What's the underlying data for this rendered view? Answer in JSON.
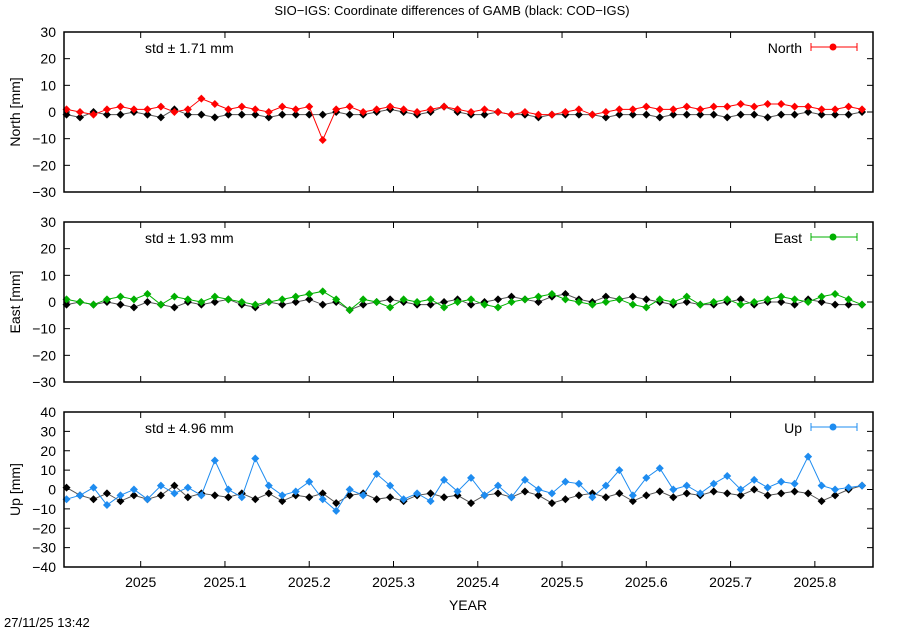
{
  "title": "SIO−IGS: Coordinate differences of GAMB (black: COD−IGS)",
  "timestamp": "27/11/25 13:42",
  "chart_data": [
    {
      "type": "line",
      "ylabel": "North [mm]",
      "ylim": [
        -30,
        30
      ],
      "yticks": [
        "30",
        "20",
        "10",
        "0",
        "−10",
        "−20",
        "−30"
      ],
      "std_label": "std ± 1.71 mm",
      "legend": "North",
      "legend_placement": "top-right",
      "color": "#ff0000",
      "series": [
        {
          "name": "North",
          "color": "#ff0000",
          "values": [
            1,
            0,
            -1,
            1,
            2,
            1,
            1,
            2,
            0,
            1,
            5,
            3,
            1,
            2,
            1,
            0,
            2,
            1,
            2,
            -10.5,
            1,
            2,
            0,
            1,
            2,
            1,
            0,
            1,
            2,
            1,
            0,
            1,
            0,
            -1,
            0,
            -1,
            -1,
            0,
            1,
            -1,
            0,
            1,
            1,
            2,
            1,
            1,
            2,
            1,
            2,
            2,
            3,
            2,
            3,
            3,
            2,
            2,
            1,
            1,
            2,
            1
          ]
        },
        {
          "color": "#000000",
          "values": [
            -1,
            -2,
            0,
            -1,
            -1,
            0,
            -1,
            -2,
            1,
            -1,
            -1,
            -2,
            -1,
            -1,
            -1,
            -2,
            -1,
            -1,
            -1,
            -1,
            0,
            -1,
            -1,
            0,
            1,
            0,
            -1,
            0,
            2,
            0,
            -1,
            -1,
            0,
            -1,
            -1,
            -2,
            -1,
            -1,
            -1,
            -1,
            -2,
            -1,
            -1,
            -1,
            -2,
            -1,
            -1,
            -1,
            -1,
            -2,
            -1,
            -1,
            -2,
            -1,
            -1,
            0,
            -1,
            -1,
            -1,
            0
          ]
        }
      ]
    },
    {
      "type": "line",
      "ylabel": "East [mm]",
      "ylim": [
        -30,
        30
      ],
      "yticks": [
        "30",
        "20",
        "10",
        "0",
        "−10",
        "−20",
        "−30"
      ],
      "std_label": "std ± 1.93 mm",
      "legend": "East",
      "legend_placement": "top-right",
      "color": "#00b000",
      "series": [
        {
          "name": "East",
          "color": "#00b000",
          "values": [
            1,
            0,
            -1,
            1,
            2,
            1,
            3,
            -1,
            2,
            1,
            0,
            2,
            1,
            0,
            -1,
            0,
            1,
            2,
            3,
            4,
            1,
            -3,
            1,
            0,
            -2,
            1,
            0,
            1,
            -2,
            0,
            1,
            -1,
            -2,
            0,
            1,
            2,
            3,
            1,
            0,
            -1,
            0,
            1,
            -1,
            -2,
            1,
            0,
            2,
            -1,
            0,
            1,
            -1,
            0,
            1,
            2,
            1,
            0,
            2,
            3,
            1,
            -1
          ]
        },
        {
          "color": "#000000",
          "values": [
            -1,
            0,
            -1,
            0,
            -1,
            -2,
            0,
            -1,
            -2,
            0,
            -1,
            0,
            1,
            -1,
            -2,
            0,
            -1,
            0,
            1,
            -1,
            0,
            -3,
            -1,
            0,
            1,
            0,
            -1,
            -1,
            0,
            1,
            -1,
            0,
            1,
            2,
            1,
            0,
            2,
            3,
            1,
            0,
            2,
            1,
            2,
            1,
            0,
            -1,
            0,
            -1,
            -1,
            0,
            1,
            -1,
            0,
            0,
            -1,
            1,
            0,
            -1,
            -1,
            -1
          ]
        }
      ]
    },
    {
      "type": "line",
      "ylabel": "Up [mm]",
      "ylim": [
        -40,
        40
      ],
      "yticks": [
        "40",
        "30",
        "20",
        "10",
        "0",
        "−10",
        "−20",
        "−30",
        "−40"
      ],
      "std_label": "std ± 4.96 mm",
      "legend": "Up",
      "legend_placement": "top-right",
      "color": "#1e8cf0",
      "series": [
        {
          "name": "Up",
          "color": "#1e8cf0",
          "values": [
            -5,
            -3,
            1,
            -8,
            -3,
            0,
            -5,
            2,
            -2,
            1,
            -3,
            15,
            0,
            -4,
            16,
            2,
            -3,
            -1,
            4,
            -5,
            -11,
            0,
            -3,
            8,
            2,
            -5,
            -2,
            -6,
            5,
            -1,
            6,
            -3,
            2,
            -4,
            5,
            0,
            -2,
            4,
            3,
            -4,
            2,
            10,
            -3,
            6,
            11,
            0,
            2,
            -2,
            3,
            7,
            0,
            5,
            1,
            4,
            3,
            17,
            2,
            0,
            1,
            2
          ]
        },
        {
          "color": "#000000",
          "values": [
            1,
            -3,
            -5,
            -2,
            -6,
            -3,
            -5,
            -3,
            2,
            -4,
            -2,
            -3,
            -4,
            -2,
            -5,
            -2,
            -6,
            -3,
            -4,
            -2,
            -7,
            -3,
            -2,
            -5,
            -4,
            -6,
            -3,
            -2,
            -4,
            -3,
            -7,
            -3,
            -2,
            -4,
            -1,
            -3,
            -7,
            -5,
            -3,
            -2,
            -4,
            -2,
            -6,
            -3,
            -1,
            -4,
            -2,
            -3,
            -1,
            -2,
            -3,
            0,
            -3,
            -2,
            -1,
            -2,
            -6,
            -3,
            0,
            2
          ]
        }
      ]
    }
  ],
  "x": [
    2024.912,
    2024.928,
    2024.944,
    2024.96,
    2024.976,
    2024.992,
    2025.008,
    2025.024,
    2025.04,
    2025.056,
    2025.072,
    2025.088,
    2025.104,
    2025.12,
    2025.136,
    2025.152,
    2025.168,
    2025.184,
    2025.2,
    2025.216,
    2025.232,
    2025.248,
    2025.264,
    2025.28,
    2025.296,
    2025.312,
    2025.328,
    2025.344,
    2025.36,
    2025.376,
    2025.392,
    2025.408,
    2025.424,
    2025.44,
    2025.456,
    2025.472,
    2025.488,
    2025.504,
    2025.52,
    2025.536,
    2025.552,
    2025.568,
    2025.584,
    2025.6,
    2025.616,
    2025.632,
    2025.648,
    2025.664,
    2025.68,
    2025.696,
    2025.712,
    2025.728,
    2025.744,
    2025.76,
    2025.776,
    2025.792,
    2025.808,
    2025.824,
    2025.84,
    2025.856
  ],
  "xlim": [
    2024.909,
    2025.869
  ],
  "xlabel": "YEAR",
  "xticks": [
    "2025",
    "2025.1",
    "2025.2",
    "2025.3",
    "2025.4",
    "2025.5",
    "2025.6",
    "2025.7",
    "2025.8"
  ],
  "xtick_values": [
    2025,
    2025.1,
    2025.2,
    2025.3,
    2025.4,
    2025.5,
    2025.6,
    2025.7,
    2025.8
  ]
}
